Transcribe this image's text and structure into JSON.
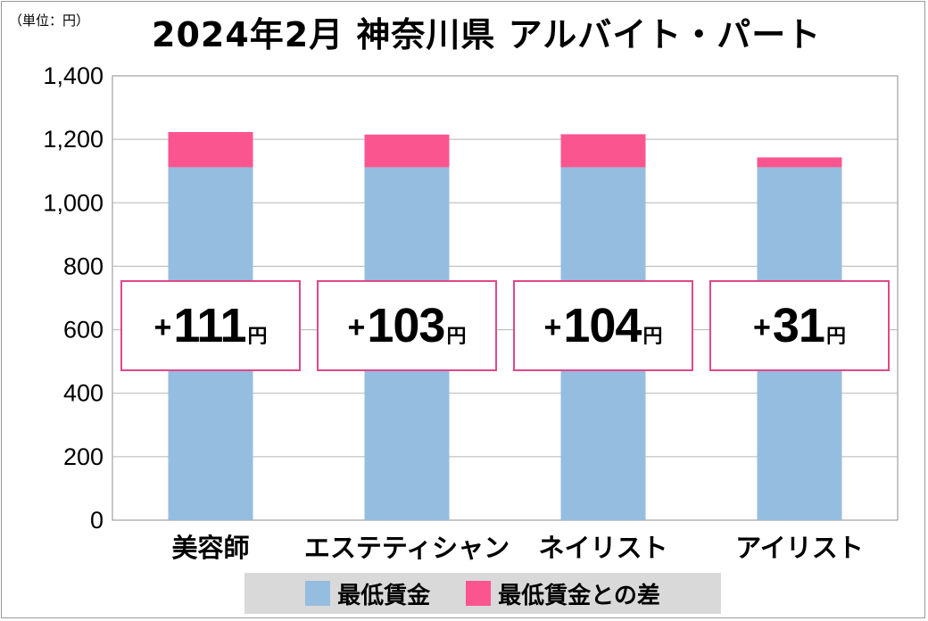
{
  "unit_label": "（単位：円）",
  "title": "2024年2月 神奈川県 アルバイト・パート",
  "colors": {
    "min_wage": "#95bddf",
    "diff": "#fb5590",
    "callout_border": "#e0488a",
    "legend_bg": "#d9d9d9"
  },
  "chart_data": {
    "type": "bar",
    "stacked": true,
    "categories": [
      "美容師",
      "エステティシャン",
      "ネイリスト",
      "アイリスト"
    ],
    "series": [
      {
        "name": "最低賃金",
        "values": [
          1112,
          1112,
          1112,
          1112
        ]
      },
      {
        "name": "最低賃金との差",
        "values": [
          111,
          103,
          104,
          31
        ]
      }
    ],
    "ylim": [
      0,
      1400
    ],
    "yticks": [
      "0",
      "200",
      "400",
      "600",
      "800",
      "1,000",
      "1,200",
      "1,400"
    ],
    "grid": true,
    "legend": "bottom",
    "annotations": [
      {
        "sign": "+",
        "number": "111",
        "unit": "円"
      },
      {
        "sign": "+",
        "number": "103",
        "unit": "円"
      },
      {
        "sign": "+",
        "number": "104",
        "unit": "円"
      },
      {
        "sign": "+",
        "number": "31",
        "unit": "円"
      }
    ]
  }
}
